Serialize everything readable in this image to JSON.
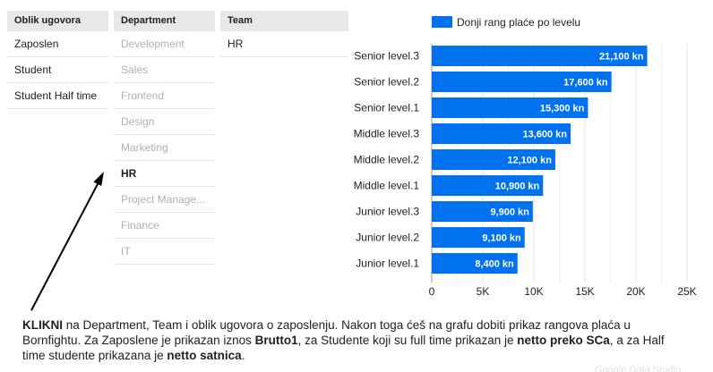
{
  "filters": {
    "oblik": {
      "header": "Oblik ugovora",
      "items": [
        {
          "label": "Zaposlen",
          "state": "normal"
        },
        {
          "label": "Student",
          "state": "normal"
        },
        {
          "label": "Student Half time",
          "state": "normal"
        }
      ]
    },
    "department": {
      "header": "Department",
      "items": [
        {
          "label": "Development",
          "state": "disabled"
        },
        {
          "label": "Sales",
          "state": "disabled"
        },
        {
          "label": "Frontend",
          "state": "disabled"
        },
        {
          "label": "Design",
          "state": "disabled"
        },
        {
          "label": "Marketing",
          "state": "disabled"
        },
        {
          "label": "HR",
          "state": "selected"
        },
        {
          "label": "Project Manage...",
          "state": "disabled"
        },
        {
          "label": "Finance",
          "state": "disabled"
        },
        {
          "label": "IT",
          "state": "disabled"
        }
      ]
    },
    "team": {
      "header": "Team",
      "items": [
        {
          "label": "HR",
          "state": "normal"
        }
      ]
    }
  },
  "chart_data": {
    "type": "bar",
    "orientation": "horizontal",
    "categories": [
      "Senior level.3",
      "Senior level.2",
      "Senior level.1",
      "Middle level.3",
      "Middle level.2",
      "Middle level.1",
      "Junior level.3",
      "Junior level.2",
      "Junior level.1"
    ],
    "series": [
      {
        "name": "Donji rang plaće po levelu",
        "values": [
          21100,
          17600,
          15300,
          13600,
          12100,
          10900,
          9900,
          9100,
          8400
        ],
        "labels": [
          "21,100 kn",
          "17,600 kn",
          "15,300 kn",
          "13,600 kn",
          "12,100 kn",
          "10,900 kn",
          "9,900 kn",
          "9,100 kn",
          "8,400 kn"
        ]
      }
    ],
    "xlim": [
      0,
      25000
    ],
    "xticks": [
      0,
      5000,
      10000,
      15000,
      20000,
      25000
    ],
    "xtick_labels": [
      "0",
      "5K",
      "10K",
      "15K",
      "20K",
      "25K"
    ],
    "grid": true,
    "legend_position": "top",
    "bar_color": "#0072f0"
  },
  "note": {
    "parts": [
      {
        "text": "KLIKNI",
        "bold": true
      },
      {
        "text": " na Department, Team i oblik ugovora o zaposlenju. Nakon toga ćeš na grafu dobiti prikaz rangova plaća u Bornfightu. Za Zaposlene je prikazan iznos ",
        "bold": false
      },
      {
        "text": "Brutto1",
        "bold": true
      },
      {
        "text": ", za Studente koji su full time prikazan je ",
        "bold": false
      },
      {
        "text": "netto preko SCa",
        "bold": true
      },
      {
        "text": ", a za Half time studente prikazana je ",
        "bold": false
      },
      {
        "text": "netto satnica",
        "bold": true
      },
      {
        "text": ".",
        "bold": false
      }
    ]
  },
  "watermark": "Google Data Studio"
}
